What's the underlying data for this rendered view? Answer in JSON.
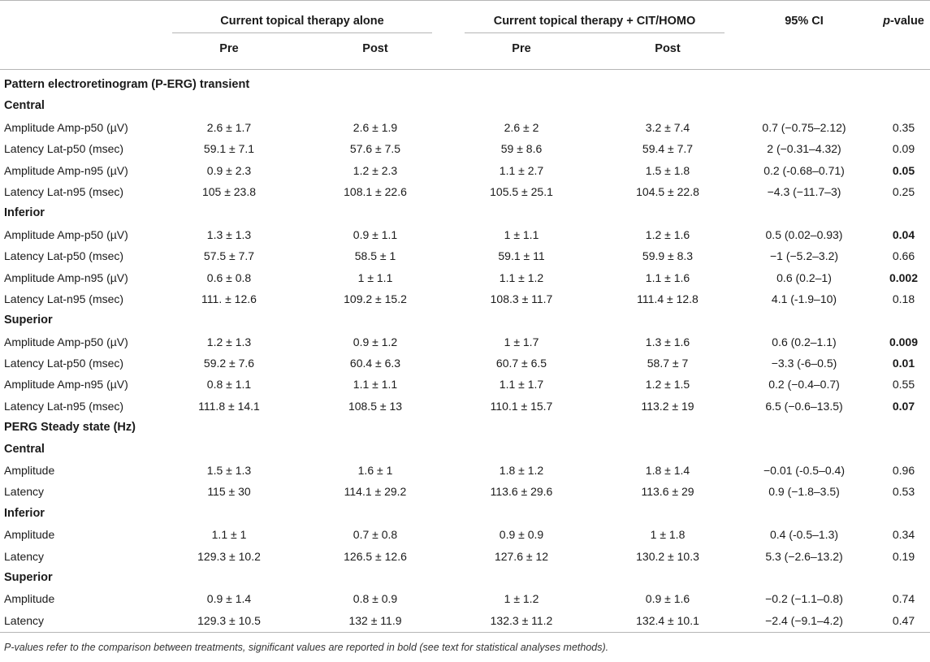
{
  "header": {
    "group1": "Current topical therapy alone",
    "group2": "Current topical therapy + CIT/HOMO",
    "ci": "95% CI",
    "pvalue_prefix": "p",
    "pvalue_suffix": "-value",
    "pre": "Pre",
    "post": "Post"
  },
  "rows": [
    {
      "type": "section",
      "label": "Pattern electroretinogram (P-ERG) transient"
    },
    {
      "type": "section",
      "label": "Central"
    },
    {
      "type": "data",
      "label": "Amplitude Amp-p50 (µV)",
      "v": [
        "2.6 ± 1.7",
        "2.6 ± 1.9",
        "2.6 ± 2",
        "3.2 ± 7.4",
        "0.7 (−0.75–2.12)",
        "0.35"
      ],
      "bold": false
    },
    {
      "type": "data",
      "label": "Latency Lat-p50 (msec)",
      "v": [
        "59.1 ± 7.1",
        "57.6 ± 7.5",
        "59 ± 8.6",
        "59.4 ± 7.7",
        "2 (−0.31–4.32)",
        "0.09"
      ],
      "bold": false
    },
    {
      "type": "data",
      "label": "Amplitude Amp-n95 (µV)",
      "v": [
        "0.9 ± 2.3",
        "1.2 ± 2.3",
        "1.1 ± 2.7",
        "1.5 ± 1.8",
        "0.2 (-0.68–0.71)",
        "0.05"
      ],
      "bold": true
    },
    {
      "type": "data",
      "label": "Latency Lat-n95 (msec)",
      "v": [
        "105 ± 23.8",
        "108.1 ± 22.6",
        "105.5 ± 25.1",
        "104.5 ± 22.8",
        "−4.3 (−11.7–3)",
        "0.25"
      ],
      "bold": false
    },
    {
      "type": "section",
      "label": "Inferior"
    },
    {
      "type": "data",
      "label": "Amplitude Amp-p50 (µV)",
      "v": [
        "1.3 ± 1.3",
        "0.9 ± 1.1",
        "1 ± 1.1",
        "1.2 ± 1.6",
        "0.5 (0.02–0.93)",
        "0.04"
      ],
      "bold": true
    },
    {
      "type": "data",
      "label": "Latency Lat-p50 (msec)",
      "v": [
        "57.5 ± 7.7",
        "58.5 ± 1",
        "59.1 ± 11",
        "59.9 ± 8.3",
        "−1 (−5.2–3.2)",
        "0.66"
      ],
      "bold": false
    },
    {
      "type": "data",
      "label": "Amplitude Amp-n95 (µV)",
      "v": [
        "0.6 ± 0.8",
        "1 ± 1.1",
        "1.1 ± 1.2",
        "1.1 ± 1.6",
        "0.6 (0.2–1)",
        "0.002"
      ],
      "bold": true
    },
    {
      "type": "data",
      "label": "Latency Lat-n95 (msec)",
      "v": [
        "111. ± 12.6",
        "109.2 ± 15.2",
        "108.3 ± 11.7",
        "111.4 ± 12.8",
        "4.1 (-1.9–10)",
        "0.18"
      ],
      "bold": false
    },
    {
      "type": "section",
      "label": "Superior"
    },
    {
      "type": "data",
      "label": "Amplitude Amp-p50 (µV)",
      "v": [
        "1.2 ± 1.3",
        "0.9 ± 1.2",
        "1 ± 1.7",
        "1.3 ± 1.6",
        "0.6 (0.2–1.1)",
        "0.009"
      ],
      "bold": true
    },
    {
      "type": "data",
      "label": "Latency Lat-p50 (msec)",
      "v": [
        "59.2 ± 7.6",
        "60.4 ± 6.3",
        "60.7 ± 6.5",
        "58.7 ± 7",
        "−3.3 (-6–0.5)",
        "0.01"
      ],
      "bold": true
    },
    {
      "type": "data",
      "label": "Amplitude Amp-n95 (µV)",
      "v": [
        "0.8 ± 1.1",
        "1.1 ± 1.1",
        "1.1 ± 1.7",
        "1.2 ± 1.5",
        "0.2 (−0.4–0.7)",
        "0.55"
      ],
      "bold": false
    },
    {
      "type": "data",
      "label": "Latency Lat-n95 (msec)",
      "v": [
        "111.8 ± 14.1",
        "108.5 ± 13",
        "110.1 ± 15.7",
        "113.2 ± 19",
        "6.5 (−0.6–13.5)",
        "0.07"
      ],
      "bold": true
    },
    {
      "type": "section",
      "label": "PERG Steady state (Hz)"
    },
    {
      "type": "section",
      "label": "Central"
    },
    {
      "type": "data",
      "label": "Amplitude",
      "v": [
        "1.5 ± 1.3",
        "1.6 ± 1",
        "1.8 ± 1.2",
        "1.8 ± 1.4",
        "−0.01 (-0.5–0.4)",
        "0.96"
      ],
      "bold": false
    },
    {
      "type": "data",
      "label": "Latency",
      "v": [
        "115 ± 30",
        "114.1 ± 29.2",
        "113.6 ± 29.6",
        "113.6 ± 29",
        "0.9 (−1.8–3.5)",
        "0.53"
      ],
      "bold": false
    },
    {
      "type": "section",
      "label": "Inferior"
    },
    {
      "type": "data",
      "label": "Amplitude",
      "v": [
        "1.1 ± 1",
        "0.7 ± 0.8",
        "0.9 ± 0.9",
        "1 ± 1.8",
        "0.4 (-0.5–1.3)",
        "0.34"
      ],
      "bold": false
    },
    {
      "type": "data",
      "label": "Latency",
      "v": [
        "129.3 ± 10.2",
        "126.5 ± 12.6",
        "127.6 ± 12",
        "130.2 ± 10.3",
        "5.3 (−2.6–13.2)",
        "0.19"
      ],
      "bold": false
    },
    {
      "type": "section",
      "label": "Superior"
    },
    {
      "type": "data",
      "label": "Amplitude",
      "v": [
        "0.9 ± 1.4",
        "0.8 ± 0.9",
        "1 ± 1.2",
        "0.9 ± 1.6",
        "−0.2 (−1.1–0.8)",
        "0.74"
      ],
      "bold": false
    },
    {
      "type": "data",
      "label": "Latency",
      "v": [
        "129.3 ± 10.5",
        "132 ± 11.9",
        "132.3 ± 11.2",
        "132.4 ± 10.1",
        "−2.4 (−9.1–4.2)",
        "0.47"
      ],
      "bold": false
    }
  ],
  "footnote": {
    "text": "P-values refer to the comparison between treatments, significant values are reported in bold (see text for statistical analyses methods)."
  }
}
